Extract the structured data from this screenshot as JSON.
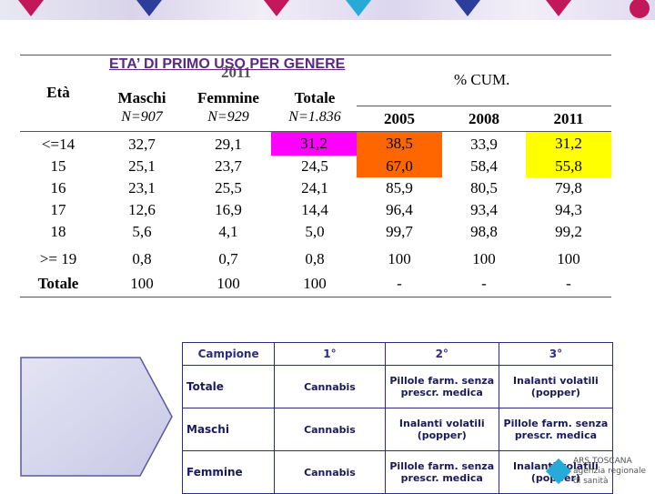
{
  "title": "ETA’ DI PRIMO USO PER GENERE",
  "year_overlay": "2011",
  "pct_cum_label": "% CUM.",
  "columns": {
    "eta": "Età",
    "maschi": "Maschi",
    "femmine": "Femmine",
    "totale": "Totale",
    "maschi_n": "N=907",
    "femmine_n": "N=929",
    "totale_n": "N=1.836",
    "y2005": "2005",
    "y2008": "2008",
    "y2011": "2011"
  },
  "rows": [
    {
      "age": "<=14",
      "maschi": "32,7",
      "femmine": "29,1",
      "totale": "31,2",
      "y2005": "38,5",
      "y2008": "33,9",
      "y2011": "31,2"
    },
    {
      "age": "15",
      "maschi": "25,1",
      "femmine": "23,7",
      "totale": "24,5",
      "y2005": "67,0",
      "y2008": "58,4",
      "y2011": "55,8"
    },
    {
      "age": "16",
      "maschi": "23,1",
      "femmine": "25,5",
      "totale": "24,1",
      "y2005": "85,9",
      "y2008": "80,5",
      "y2011": "79,8"
    },
    {
      "age": "17",
      "maschi": "12,6",
      "femmine": "16,9",
      "totale": "14,4",
      "y2005": "96,4",
      "y2008": "93,4",
      "y2011": "94,3"
    },
    {
      "age": "18",
      "maschi": "5,6",
      "femmine": "4,1",
      "totale": "5,0",
      "y2005": "99,7",
      "y2008": "98,8",
      "y2011": "99,2"
    },
    {
      "age": ">= 19",
      "maschi": "0,8",
      "femmine": "0,7",
      "totale": "0,8",
      "y2005": "100",
      "y2008": "100",
      "y2011": "100"
    },
    {
      "age": "Totale",
      "maschi": "100",
      "femmine": "100",
      "totale": "100",
      "y2005": "-",
      "y2008": "-",
      "y2011": "-"
    }
  ],
  "highlight_colors": {
    "magenta": "#ff00ff",
    "orange": "#ff6600",
    "yellow": "#ffff00"
  },
  "ranking": {
    "headers": [
      "Campione",
      "1°",
      "2°",
      "3°"
    ],
    "rows": [
      {
        "sample": "Totale",
        "first": "Cannabis",
        "second": "Pillole farm. senza prescr. medica",
        "third": "Inalanti volatili (popper)"
      },
      {
        "sample": "Maschi",
        "first": "Cannabis",
        "second": "Inalanti volatili (popper)",
        "third": "Pillole farm. senza prescr. medica"
      },
      {
        "sample": "Femmine",
        "first": "Cannabis",
        "second": "Pillole farm. senza prescr. medica",
        "third": "Inalanti volatili (popper)"
      }
    ]
  },
  "brand": {
    "line1": "ARS TOSCANA",
    "line2": "agenzia regionale di sanità"
  }
}
